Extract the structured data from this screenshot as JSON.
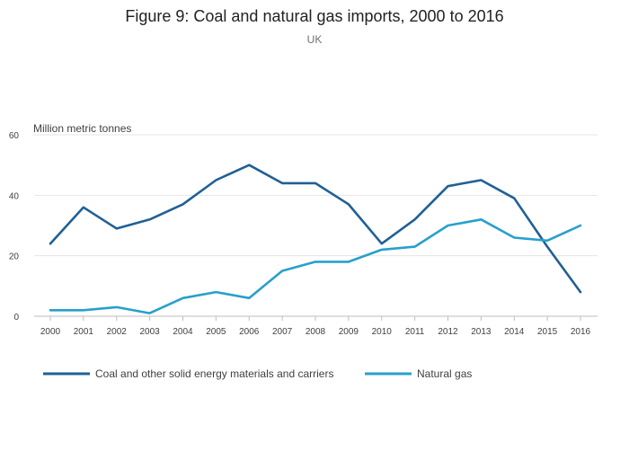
{
  "chart_data": {
    "type": "line",
    "title": "Figure 9: Coal and natural gas imports, 2000 to 2016",
    "subtitle": "UK",
    "xlabel": "",
    "ylabel": "Million metric tonnes",
    "ylim": [
      0,
      60
    ],
    "yticks": [
      "0",
      "20",
      "40",
      "60"
    ],
    "categories": [
      "2000",
      "2001",
      "2002",
      "2003",
      "2004",
      "2005",
      "2006",
      "2007",
      "2008",
      "2009",
      "2010",
      "2011",
      "2012",
      "2013",
      "2014",
      "2015",
      "2016"
    ],
    "grid": true,
    "legend_position": "bottom",
    "series": [
      {
        "name": "Coal and other solid energy materials and carriers",
        "color": "#206095",
        "values": [
          24,
          36,
          29,
          32,
          37,
          45,
          50,
          44,
          44,
          37,
          24,
          32,
          43,
          45,
          39,
          23,
          8
        ]
      },
      {
        "name": "Natural gas",
        "color": "#27a0cc",
        "values": [
          2,
          2,
          3,
          1,
          6,
          8,
          6,
          15,
          18,
          18,
          22,
          23,
          30,
          32,
          26,
          25,
          30
        ]
      }
    ]
  }
}
